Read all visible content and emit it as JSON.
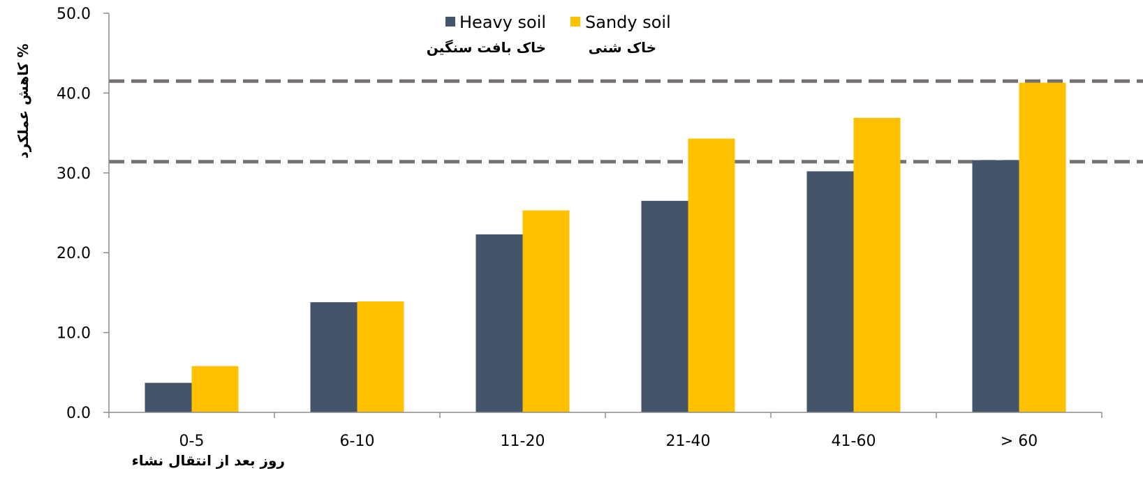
{
  "chart_data": {
    "type": "bar",
    "categories": [
      "0-5",
      "6-10",
      "11-20",
      "21-40",
      "41-60",
      "> 60"
    ],
    "series": [
      {
        "name": "Heavy soil",
        "name_fa": "خاک بافت سنگین",
        "color": "#44546A",
        "values": [
          3.7,
          13.8,
          22.3,
          26.5,
          30.2,
          31.6
        ]
      },
      {
        "name": "Sandy soil",
        "name_fa": "خاک شنی",
        "color": "#FFC000",
        "values": [
          5.8,
          13.9,
          25.3,
          34.3,
          36.9,
          41.3
        ]
      }
    ],
    "y_ticks": [
      "0.0",
      "10.0",
      "20.0",
      "30.0",
      "40.0",
      "50.0"
    ],
    "ylim": [
      0,
      50
    ],
    "ylabel": "کاهش عملکرد %",
    "xlabel": "روز بعد از انتقال نشاء",
    "reference_lines": [
      31.4,
      41.5
    ],
    "reference_line_color": "#767171",
    "legend_position": "top-center",
    "grid": false
  }
}
